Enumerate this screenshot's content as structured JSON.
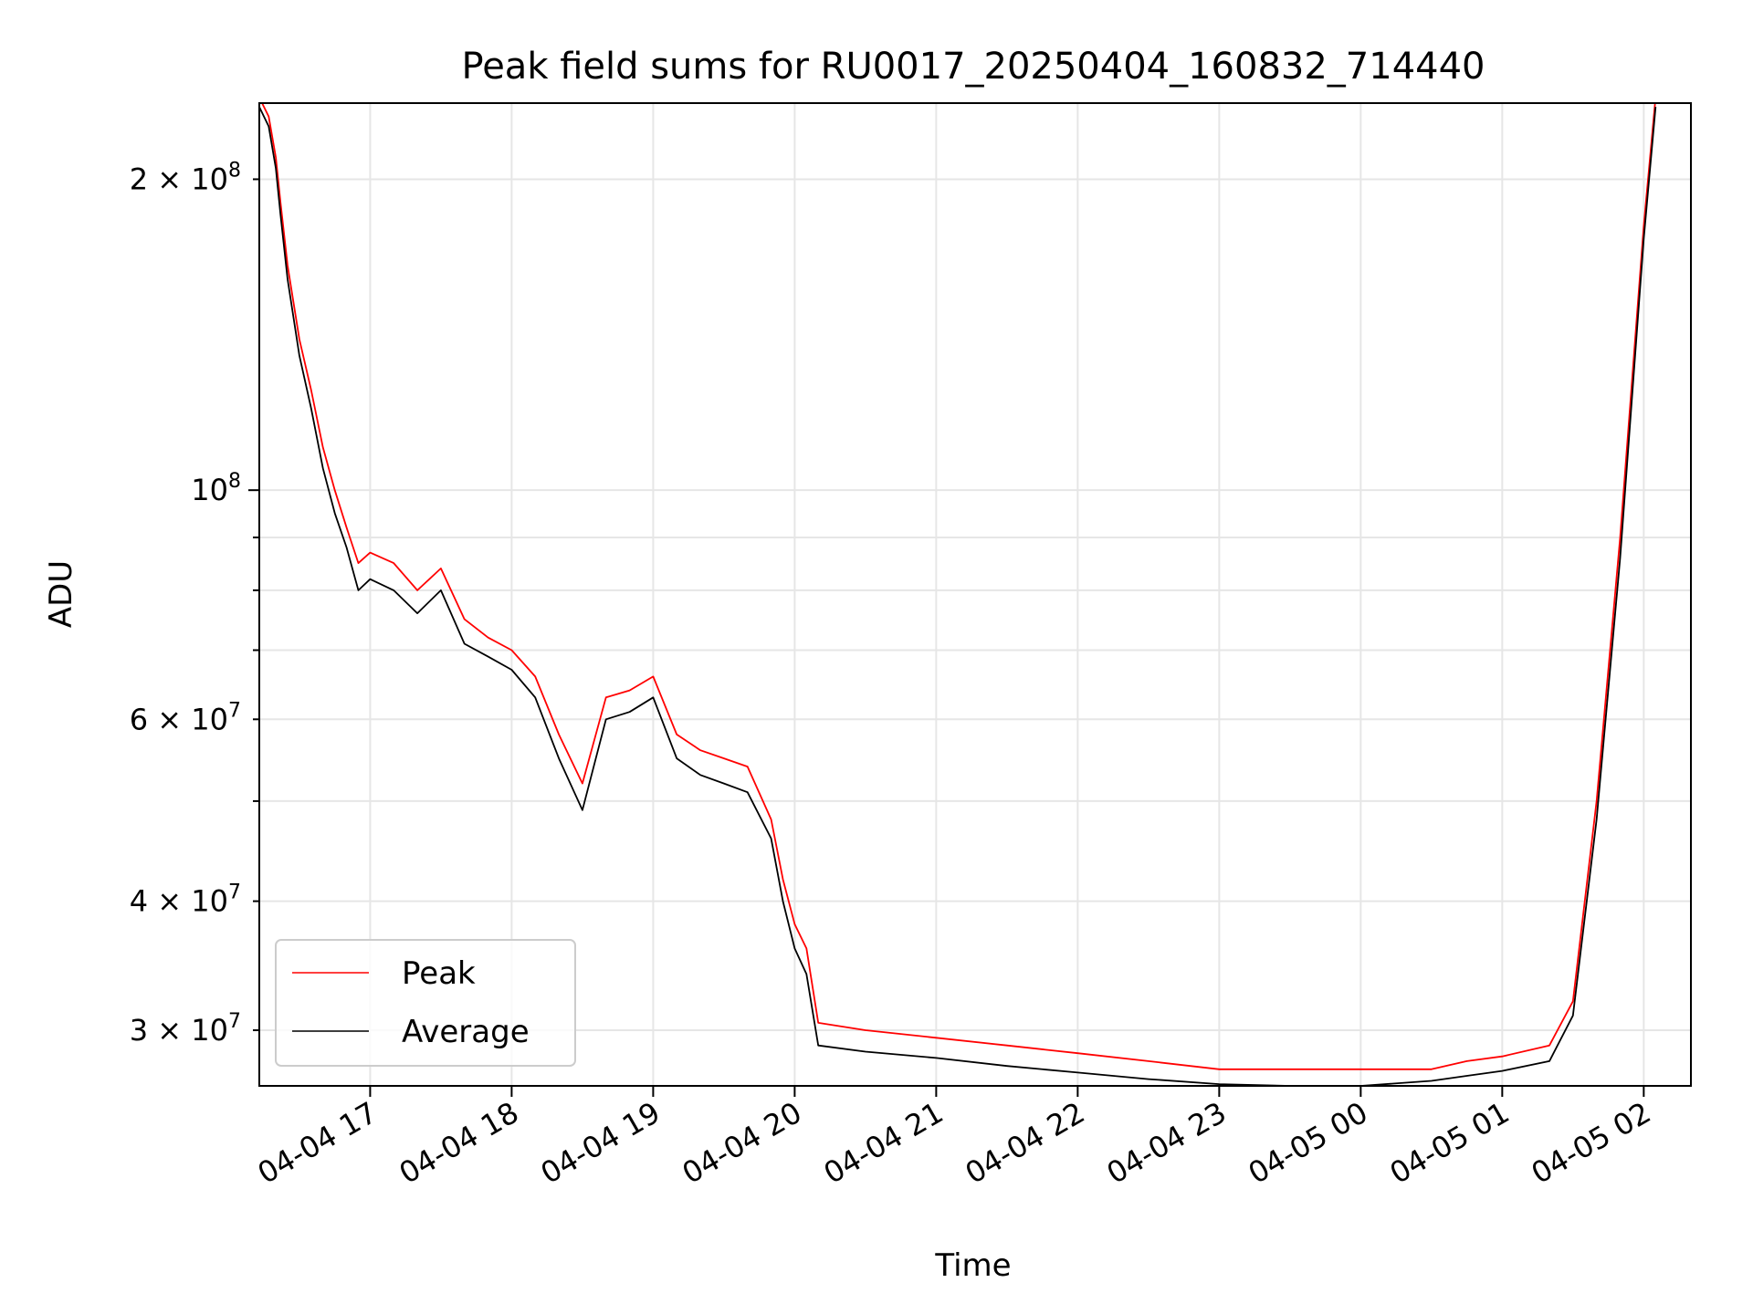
{
  "chart_data": {
    "type": "line",
    "title": "Peak field sums for RU0017_20250404_160832_714440",
    "xlabel": "Time",
    "ylabel": "ADU",
    "x_range": [
      "2025-04-04 16:13",
      "2025-04-05 02:20"
    ],
    "y_range": [
      26500000,
      237000000
    ],
    "y_scale": "log",
    "grid": true,
    "legend_position": "lower-left",
    "x_ticks": [
      {
        "value": "2025-04-04 17:00",
        "label": "04-04 17"
      },
      {
        "value": "2025-04-04 18:00",
        "label": "04-04 18"
      },
      {
        "value": "2025-04-04 19:00",
        "label": "04-04 19"
      },
      {
        "value": "2025-04-04 20:00",
        "label": "04-04 20"
      },
      {
        "value": "2025-04-04 21:00",
        "label": "04-04 21"
      },
      {
        "value": "2025-04-04 22:00",
        "label": "04-04 22"
      },
      {
        "value": "2025-04-04 23:00",
        "label": "04-04 23"
      },
      {
        "value": "2025-04-05 00:00",
        "label": "04-05 00"
      },
      {
        "value": "2025-04-05 01:00",
        "label": "04-05 01"
      },
      {
        "value": "2025-04-05 02:00",
        "label": "04-05 02"
      }
    ],
    "y_major_ticks": [
      {
        "value": 100000000,
        "base": "10",
        "exp": "8"
      }
    ],
    "y_minor_ticks": [
      {
        "value": 30000000,
        "mant": "3",
        "exp": "7",
        "label": true
      },
      {
        "value": 40000000,
        "mant": "4",
        "exp": "7",
        "label": true
      },
      {
        "value": 50000000,
        "label": false
      },
      {
        "value": 60000000,
        "mant": "6",
        "exp": "7",
        "label": true
      },
      {
        "value": 70000000,
        "label": false
      },
      {
        "value": 80000000,
        "label": false
      },
      {
        "value": 90000000,
        "label": false
      },
      {
        "value": 200000000,
        "mant": "2",
        "exp": "8",
        "label": true
      }
    ],
    "series": [
      {
        "name": "Peak",
        "color": "#ff0000",
        "x": [
          "2025-04-04 16:13",
          "2025-04-04 16:17",
          "2025-04-04 16:20",
          "2025-04-04 16:22",
          "2025-04-04 16:25",
          "2025-04-04 16:30",
          "2025-04-04 16:35",
          "2025-04-04 16:40",
          "2025-04-04 16:45",
          "2025-04-04 16:50",
          "2025-04-04 16:55",
          "2025-04-04 17:00",
          "2025-04-04 17:10",
          "2025-04-04 17:20",
          "2025-04-04 17:30",
          "2025-04-04 17:40",
          "2025-04-04 17:50",
          "2025-04-04 18:00",
          "2025-04-04 18:10",
          "2025-04-04 18:20",
          "2025-04-04 18:30",
          "2025-04-04 18:40",
          "2025-04-04 18:50",
          "2025-04-04 19:00",
          "2025-04-04 19:10",
          "2025-04-04 19:20",
          "2025-04-04 19:30",
          "2025-04-04 19:40",
          "2025-04-04 19:50",
          "2025-04-04 19:55",
          "2025-04-04 20:00",
          "2025-04-04 20:05",
          "2025-04-04 20:10",
          "2025-04-04 20:30",
          "2025-04-04 21:00",
          "2025-04-04 21:30",
          "2025-04-04 22:00",
          "2025-04-04 22:30",
          "2025-04-04 23:00",
          "2025-04-04 23:30",
          "2025-04-05 00:00",
          "2025-04-05 00:30",
          "2025-04-05 00:45",
          "2025-04-05 01:00",
          "2025-04-05 01:20",
          "2025-04-05 01:30",
          "2025-04-05 01:40",
          "2025-04-05 01:50",
          "2025-04-05 02:00",
          "2025-04-05 02:05"
        ],
        "values": [
          240000000,
          230000000,
          210000000,
          190000000,
          165000000,
          140000000,
          125000000,
          110000000,
          100000000,
          92000000,
          85000000,
          87000000,
          85000000,
          80000000,
          84000000,
          75000000,
          72000000,
          70000000,
          66000000,
          58000000,
          52000000,
          63000000,
          64000000,
          66000000,
          58000000,
          56000000,
          55000000,
          54000000,
          48000000,
          42000000,
          38000000,
          36000000,
          30500000,
          30000000,
          29500000,
          29000000,
          28500000,
          28000000,
          27500000,
          27500000,
          27500000,
          27500000,
          28000000,
          28300000,
          29000000,
          32000000,
          50000000,
          90000000,
          180000000,
          240000000
        ]
      },
      {
        "name": "Average",
        "color": "#000000",
        "x": [
          "2025-04-04 16:13",
          "2025-04-04 16:17",
          "2025-04-04 16:20",
          "2025-04-04 16:22",
          "2025-04-04 16:25",
          "2025-04-04 16:30",
          "2025-04-04 16:35",
          "2025-04-04 16:40",
          "2025-04-04 16:45",
          "2025-04-04 16:50",
          "2025-04-04 16:55",
          "2025-04-04 17:00",
          "2025-04-04 17:10",
          "2025-04-04 17:20",
          "2025-04-04 17:30",
          "2025-04-04 17:40",
          "2025-04-04 17:50",
          "2025-04-04 18:00",
          "2025-04-04 18:10",
          "2025-04-04 18:20",
          "2025-04-04 18:30",
          "2025-04-04 18:40",
          "2025-04-04 18:50",
          "2025-04-04 19:00",
          "2025-04-04 19:10",
          "2025-04-04 19:20",
          "2025-04-04 19:30",
          "2025-04-04 19:40",
          "2025-04-04 19:50",
          "2025-04-04 19:55",
          "2025-04-04 20:00",
          "2025-04-04 20:05",
          "2025-04-04 20:10",
          "2025-04-04 20:30",
          "2025-04-04 21:00",
          "2025-04-04 21:30",
          "2025-04-04 22:00",
          "2025-04-04 22:30",
          "2025-04-04 23:00",
          "2025-04-04 23:30",
          "2025-04-05 00:00",
          "2025-04-05 00:30",
          "2025-04-05 00:45",
          "2025-04-05 01:00",
          "2025-04-05 01:20",
          "2025-04-05 01:30",
          "2025-04-05 01:40",
          "2025-04-05 01:50",
          "2025-04-05 02:00",
          "2025-04-05 02:05"
        ],
        "values": [
          235000000,
          225000000,
          205000000,
          185000000,
          160000000,
          135000000,
          120000000,
          105000000,
          95000000,
          88000000,
          80000000,
          82000000,
          80000000,
          76000000,
          80000000,
          71000000,
          69000000,
          67000000,
          63000000,
          55000000,
          49000000,
          60000000,
          61000000,
          63000000,
          55000000,
          53000000,
          52000000,
          51000000,
          46000000,
          40000000,
          36000000,
          34000000,
          29000000,
          28600000,
          28200000,
          27700000,
          27300000,
          26900000,
          26600000,
          26500000,
          26500000,
          26800000,
          27100000,
          27400000,
          28000000,
          31000000,
          48000000,
          86000000,
          175000000,
          235000000
        ]
      }
    ]
  }
}
